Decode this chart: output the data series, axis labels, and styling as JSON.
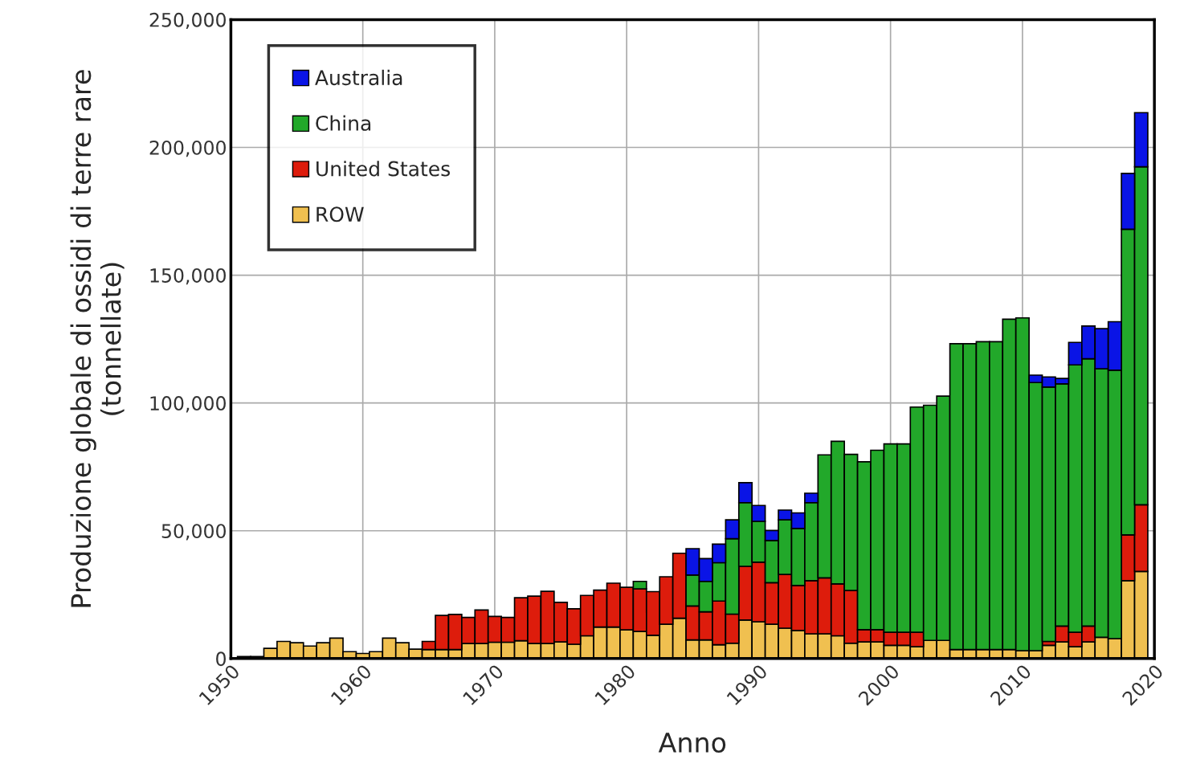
{
  "chart_data": {
    "type": "bar",
    "stacked": true,
    "xlabel": "Anno",
    "ylabel": "Produzione globale di ossidi di terre rare\n(tonnellate)",
    "x": [
      1951,
      1952,
      1953,
      1954,
      1955,
      1956,
      1957,
      1958,
      1959,
      1960,
      1961,
      1962,
      1963,
      1964,
      1965,
      1966,
      1967,
      1968,
      1969,
      1970,
      1971,
      1972,
      1973,
      1974,
      1975,
      1976,
      1977,
      1978,
      1979,
      1980,
      1981,
      1982,
      1983,
      1984,
      1985,
      1986,
      1987,
      1988,
      1989,
      1990,
      1991,
      1992,
      1993,
      1994,
      1995,
      1996,
      1997,
      1998,
      1999,
      2000,
      2001,
      2002,
      2003,
      2004,
      2005,
      2006,
      2007,
      2008,
      2009,
      2010,
      2011,
      2012,
      2013,
      2014,
      2015,
      2016,
      2017,
      2018,
      2019
    ],
    "series": [
      {
        "name": "ROW",
        "color": "#f0c050",
        "values": [
          800,
          800,
          4000,
          6700,
          6200,
          4900,
          6200,
          8000,
          2700,
          2000,
          2700,
          8000,
          6200,
          3700,
          3500,
          3500,
          3500,
          5900,
          5900,
          6400,
          6400,
          7000,
          5900,
          5900,
          6500,
          5600,
          8900,
          12300,
          12300,
          11200,
          10600,
          9100,
          13400,
          15800,
          7300,
          7300,
          5400,
          6000,
          15100,
          14400,
          13400,
          11900,
          11000,
          9700,
          9700,
          8900,
          6000,
          6500,
          6500,
          5200,
          5200,
          4600,
          7100,
          7100,
          3500,
          3500,
          3500,
          3500,
          3500,
          3100,
          3100,
          5200,
          6500,
          4600,
          6500,
          8300,
          7800,
          30500,
          34100
        ]
      },
      {
        "name": "United States",
        "color": "#dd1c0c",
        "values": [
          null,
          null,
          null,
          null,
          null,
          null,
          null,
          null,
          null,
          null,
          null,
          null,
          null,
          null,
          3200,
          13400,
          13800,
          10200,
          13100,
          10100,
          9700,
          16800,
          18500,
          20400,
          15500,
          13900,
          15800,
          14500,
          17200,
          16700,
          16700,
          17100,
          18600,
          25400,
          13300,
          11000,
          17100,
          11400,
          21000,
          23300,
          16300,
          21000,
          17600,
          20800,
          21900,
          20300,
          20600,
          4800,
          4800,
          5100,
          5100,
          5700,
          null,
          null,
          null,
          null,
          null,
          null,
          null,
          null,
          null,
          1500,
          6200,
          5700,
          6200,
          null,
          null,
          17900,
          26100
        ]
      },
      {
        "name": "China",
        "color": "#22a82a",
        "values": [
          null,
          null,
          null,
          null,
          null,
          null,
          null,
          null,
          null,
          null,
          null,
          null,
          null,
          null,
          null,
          null,
          null,
          null,
          null,
          null,
          null,
          null,
          null,
          null,
          null,
          null,
          null,
          null,
          null,
          null,
          2900,
          null,
          null,
          null,
          12100,
          11900,
          15000,
          29500,
          24900,
          16000,
          16500,
          21400,
          22300,
          30500,
          48100,
          55800,
          53300,
          65700,
          70200,
          73700,
          73700,
          88100,
          92000,
          95600,
          119700,
          119700,
          120500,
          120500,
          129300,
          130200,
          104900,
          99500,
          94800,
          104600,
          104600,
          105100,
          105000,
          119600,
          132200
        ]
      },
      {
        "name": "Australia",
        "color": "#0a14e6",
        "values": [
          null,
          null,
          null,
          null,
          null,
          null,
          null,
          null,
          null,
          null,
          null,
          null,
          null,
          null,
          null,
          null,
          null,
          null,
          null,
          null,
          null,
          null,
          null,
          null,
          null,
          null,
          null,
          null,
          null,
          null,
          null,
          null,
          null,
          null,
          10300,
          8900,
          7300,
          7400,
          7800,
          6200,
          3900,
          3800,
          6100,
          3700,
          null,
          null,
          null,
          null,
          null,
          null,
          null,
          null,
          null,
          null,
          null,
          null,
          null,
          null,
          null,
          null,
          2900,
          4000,
          2100,
          8800,
          12800,
          15700,
          19000,
          21800,
          21200
        ]
      }
    ],
    "xlim": [
      1950,
      2020
    ],
    "xticks": [
      1950,
      1960,
      1970,
      1980,
      1990,
      2000,
      2010,
      2020
    ],
    "ylim": [
      0,
      250000
    ],
    "yticks": [
      0,
      {
        "value": 50000,
        "label": "50,000"
      },
      {
        "value": 100000,
        "label": "100,000"
      },
      {
        "value": 150000,
        "label": "150,000"
      },
      {
        "value": 200000,
        "label": "200,000"
      },
      {
        "value": 250000,
        "label": "250,000"
      }
    ],
    "grid": true,
    "legend": "top left"
  }
}
